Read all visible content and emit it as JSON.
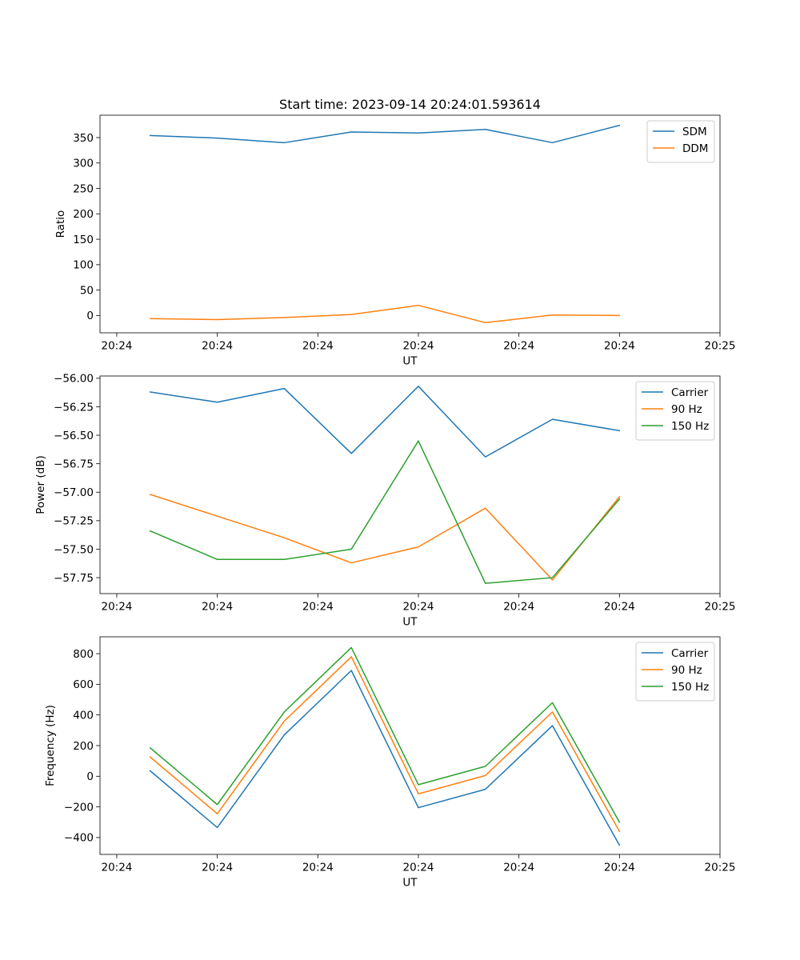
{
  "figure": {
    "title": "Start time: 2023-09-14 20:24:01.593614"
  },
  "chart_data": [
    {
      "type": "line",
      "title": "Start time: 2023-09-14 20:24:01.593614",
      "xlabel": "UT",
      "ylabel": "Ratio",
      "x": [
        1,
        2,
        3,
        4,
        5,
        6,
        7,
        8
      ],
      "xlim": [
        0.25,
        9.5
      ],
      "xticks": [
        0.5,
        2,
        3.5,
        5,
        6.5,
        8,
        9.5
      ],
      "xtick_labels": [
        "20:24",
        "20:24",
        "20:24",
        "20:24",
        "20:24",
        "20:24",
        "20:25"
      ],
      "ylim": [
        -34,
        394
      ],
      "yticks": [
        0,
        50,
        100,
        150,
        200,
        250,
        300,
        350
      ],
      "ytick_labels": [
        "0",
        "50",
        "100",
        "150",
        "200",
        "250",
        "300",
        "350"
      ],
      "legend_position": "top-right",
      "series": [
        {
          "name": "SDM",
          "color": "#1f77b4",
          "values": [
            354,
            349,
            340,
            361,
            359,
            366,
            340,
            374
          ]
        },
        {
          "name": "DDM",
          "color": "#ff7f0e",
          "values": [
            -6,
            -8,
            -4,
            2,
            20,
            -14,
            1,
            0
          ]
        }
      ]
    },
    {
      "type": "line",
      "xlabel": "UT",
      "ylabel": "Power (dB)",
      "x": [
        1,
        2,
        3,
        4,
        5,
        6,
        7,
        8
      ],
      "xlim": [
        0.25,
        9.5
      ],
      "xticks": [
        0.5,
        2,
        3.5,
        5,
        6.5,
        8,
        9.5
      ],
      "xtick_labels": [
        "20:24",
        "20:24",
        "20:24",
        "20:24",
        "20:24",
        "20:24",
        "20:25"
      ],
      "ylim": [
        -57.89,
        -55.98
      ],
      "yticks": [
        -56.0,
        -56.25,
        -56.5,
        -56.75,
        -57.0,
        -57.25,
        -57.5,
        -57.75
      ],
      "ytick_labels": [
        "−56.00",
        "−56.25",
        "−56.50",
        "−56.75",
        "−57.00",
        "−57.25",
        "−57.50",
        "−57.75"
      ],
      "legend_position": "top-right",
      "series": [
        {
          "name": "Carrier",
          "color": "#1f77b4",
          "values": [
            -56.12,
            -56.21,
            -56.09,
            -56.66,
            -56.07,
            -56.69,
            -56.36,
            -56.46
          ]
        },
        {
          "name": "90 Hz",
          "color": "#ff7f0e",
          "values": [
            -57.02,
            -57.21,
            -57.4,
            -57.62,
            -57.48,
            -57.14,
            -57.77,
            -57.04
          ]
        },
        {
          "name": "150 Hz",
          "color": "#2ca02c",
          "values": [
            -57.34,
            -57.59,
            -57.59,
            -57.5,
            -56.55,
            -57.8,
            -57.75,
            -57.06
          ]
        }
      ]
    },
    {
      "type": "line",
      "xlabel": "UT",
      "ylabel": "Frequency (Hz)",
      "x": [
        1,
        2,
        3,
        4,
        5,
        6,
        7,
        8
      ],
      "xlim": [
        0.25,
        9.5
      ],
      "xticks": [
        0.5,
        2,
        3.5,
        5,
        6.5,
        8,
        9.5
      ],
      "xtick_labels": [
        "20:24",
        "20:24",
        "20:24",
        "20:24",
        "20:24",
        "20:24",
        "20:25"
      ],
      "ylim": [
        -510,
        910
      ],
      "yticks": [
        -400,
        -200,
        0,
        200,
        400,
        600,
        800
      ],
      "ytick_labels": [
        "−400",
        "−200",
        "0",
        "200",
        "400",
        "600",
        "800"
      ],
      "legend_position": "top-right",
      "series": [
        {
          "name": "Carrier",
          "color": "#1f77b4",
          "values": [
            35,
            -335,
            270,
            690,
            -205,
            -85,
            330,
            -450
          ]
        },
        {
          "name": "90 Hz",
          "color": "#ff7f0e",
          "values": [
            125,
            -245,
            360,
            780,
            -115,
            5,
            420,
            -360
          ]
        },
        {
          "name": "150 Hz",
          "color": "#2ca02c",
          "values": [
            185,
            -185,
            420,
            840,
            -55,
            65,
            480,
            -300
          ]
        }
      ]
    }
  ]
}
